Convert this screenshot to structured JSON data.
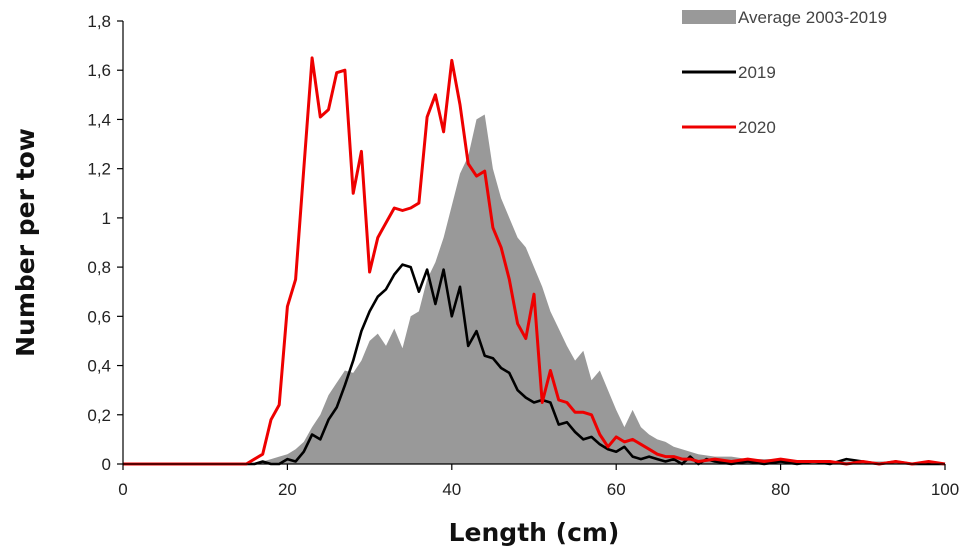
{
  "chart_data": {
    "type": "line",
    "xlabel": "Length (cm)",
    "ylabel": "Number per tow",
    "xlim": [
      0,
      100
    ],
    "ylim": [
      0,
      1.8
    ],
    "x_ticks": [
      0,
      20,
      40,
      60,
      80,
      100
    ],
    "y_ticks": [
      0,
      0.2,
      0.4,
      0.6,
      0.8,
      1.0,
      1.2,
      1.4,
      1.6,
      1.8
    ],
    "y_tick_labels": [
      "0",
      "0,2",
      "0,4",
      "0,6",
      "0,8",
      "1",
      "1,2",
      "1,4",
      "1,6",
      "1,8"
    ],
    "grid": false,
    "legend_position": "top-right",
    "series": [
      {
        "name": "Average 2003-2019",
        "style": "area",
        "color": "#999999",
        "x": [
          0,
          15,
          16,
          17,
          18,
          19,
          20,
          21,
          22,
          23,
          24,
          25,
          26,
          27,
          28,
          29,
          30,
          31,
          32,
          33,
          34,
          35,
          36,
          37,
          38,
          39,
          40,
          41,
          42,
          43,
          44,
          45,
          46,
          47,
          48,
          49,
          50,
          51,
          52,
          53,
          54,
          55,
          56,
          57,
          58,
          59,
          60,
          61,
          62,
          63,
          64,
          65,
          66,
          67,
          68,
          69,
          70,
          72,
          74,
          76,
          78,
          80,
          82,
          84,
          86,
          88,
          90,
          92,
          94,
          96,
          98,
          100
        ],
        "y": [
          0,
          0,
          0.005,
          0.01,
          0.02,
          0.03,
          0.04,
          0.06,
          0.09,
          0.15,
          0.2,
          0.28,
          0.33,
          0.38,
          0.37,
          0.42,
          0.5,
          0.53,
          0.48,
          0.55,
          0.47,
          0.6,
          0.62,
          0.75,
          0.82,
          0.92,
          1.05,
          1.18,
          1.25,
          1.4,
          1.42,
          1.2,
          1.08,
          1.0,
          0.92,
          0.88,
          0.8,
          0.72,
          0.62,
          0.55,
          0.48,
          0.42,
          0.46,
          0.34,
          0.38,
          0.3,
          0.22,
          0.15,
          0.22,
          0.15,
          0.12,
          0.1,
          0.09,
          0.07,
          0.06,
          0.05,
          0.04,
          0.03,
          0.03,
          0.02,
          0.02,
          0.02,
          0.01,
          0.01,
          0.01,
          0.01,
          0.01,
          0.01,
          0.01,
          0.0,
          0.0,
          0.0
        ]
      },
      {
        "name": "2019",
        "style": "line",
        "color": "#000000",
        "x": [
          0,
          15,
          16,
          17,
          18,
          19,
          20,
          21,
          22,
          23,
          24,
          25,
          26,
          27,
          28,
          29,
          30,
          31,
          32,
          33,
          34,
          35,
          36,
          37,
          38,
          39,
          40,
          41,
          42,
          43,
          44,
          45,
          46,
          47,
          48,
          49,
          50,
          51,
          52,
          53,
          54,
          55,
          56,
          57,
          58,
          59,
          60,
          61,
          62,
          63,
          64,
          65,
          66,
          67,
          68,
          69,
          70,
          71,
          72,
          74,
          76,
          78,
          80,
          82,
          84,
          86,
          88,
          90,
          92,
          94,
          96,
          98,
          100
        ],
        "y": [
          0,
          0,
          0,
          0.01,
          0.0,
          0.0,
          0.02,
          0.01,
          0.05,
          0.12,
          0.1,
          0.18,
          0.23,
          0.32,
          0.42,
          0.54,
          0.62,
          0.68,
          0.71,
          0.77,
          0.81,
          0.8,
          0.7,
          0.79,
          0.65,
          0.79,
          0.6,
          0.72,
          0.48,
          0.54,
          0.44,
          0.43,
          0.39,
          0.37,
          0.3,
          0.27,
          0.25,
          0.26,
          0.25,
          0.16,
          0.17,
          0.13,
          0.1,
          0.11,
          0.08,
          0.06,
          0.05,
          0.07,
          0.03,
          0.02,
          0.03,
          0.02,
          0.01,
          0.02,
          0.0,
          0.03,
          0.0,
          0.02,
          0.01,
          0.0,
          0.01,
          0.0,
          0.01,
          0.0,
          0.01,
          0.0,
          0.02,
          0.01,
          0.0,
          0.01,
          0.0,
          0.0,
          0.0
        ]
      },
      {
        "name": "2020",
        "style": "line",
        "color": "#ee0000",
        "x": [
          0,
          15,
          16,
          17,
          18,
          19,
          20,
          21,
          22,
          23,
          24,
          25,
          26,
          27,
          28,
          29,
          30,
          31,
          32,
          33,
          34,
          35,
          36,
          37,
          38,
          39,
          40,
          41,
          42,
          43,
          44,
          45,
          46,
          47,
          48,
          49,
          50,
          51,
          52,
          53,
          54,
          55,
          56,
          57,
          58,
          59,
          60,
          61,
          62,
          63,
          64,
          65,
          66,
          67,
          68,
          69,
          70,
          72,
          74,
          76,
          78,
          80,
          82,
          84,
          86,
          88,
          90,
          92,
          94,
          96,
          98,
          100
        ],
        "y": [
          0,
          0,
          0.02,
          0.04,
          0.18,
          0.24,
          0.64,
          0.75,
          1.2,
          1.65,
          1.41,
          1.44,
          1.59,
          1.6,
          1.1,
          1.27,
          0.78,
          0.92,
          0.98,
          1.04,
          1.03,
          1.04,
          1.06,
          1.41,
          1.5,
          1.35,
          1.64,
          1.46,
          1.22,
          1.17,
          1.19,
          0.96,
          0.88,
          0.75,
          0.57,
          0.51,
          0.69,
          0.25,
          0.38,
          0.26,
          0.25,
          0.21,
          0.21,
          0.2,
          0.12,
          0.07,
          0.11,
          0.09,
          0.1,
          0.08,
          0.06,
          0.04,
          0.03,
          0.03,
          0.02,
          0.02,
          0.01,
          0.02,
          0.01,
          0.02,
          0.01,
          0.02,
          0.01,
          0.01,
          0.01,
          0.0,
          0.01,
          0.0,
          0.01,
          0.0,
          0.01,
          0.0
        ]
      }
    ]
  }
}
